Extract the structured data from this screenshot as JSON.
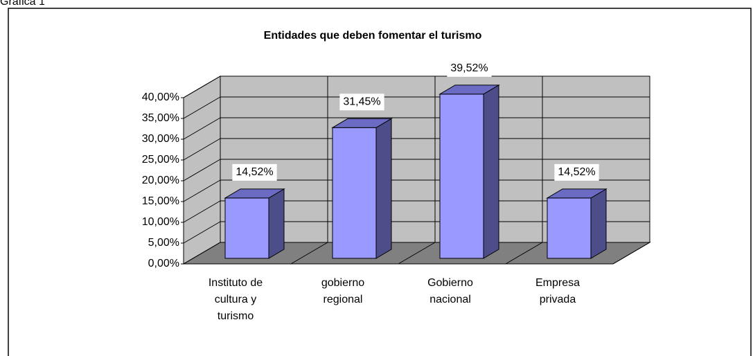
{
  "heading": "Gráfica 1",
  "chart_data": {
    "type": "bar3d",
    "title": "Entidades que deben fomentar el turismo",
    "categories": [
      "Instituto de cultura y turismo",
      "gobierno regional",
      "Gobierno nacional",
      "Empresa privada"
    ],
    "values": [
      14.52,
      31.45,
      39.52,
      14.52
    ],
    "value_labels": [
      "14,52%",
      "31,45%",
      "39,52%",
      "14,52%"
    ],
    "color": "#9999ff",
    "ylim": [
      0,
      40
    ],
    "yticks": [
      {
        "value": 0,
        "label": "0,00%"
      },
      {
        "value": 5,
        "label": "5,00%"
      },
      {
        "value": 10,
        "label": "10,00%"
      },
      {
        "value": 15,
        "label": "15,00%"
      },
      {
        "value": 20,
        "label": "20,00%"
      },
      {
        "value": 25,
        "label": "25,00%"
      },
      {
        "value": 30,
        "label": "30,00%"
      },
      {
        "value": 35,
        "label": "35,00%"
      },
      {
        "value": 40,
        "label": "40,00%"
      }
    ],
    "grid": true
  }
}
